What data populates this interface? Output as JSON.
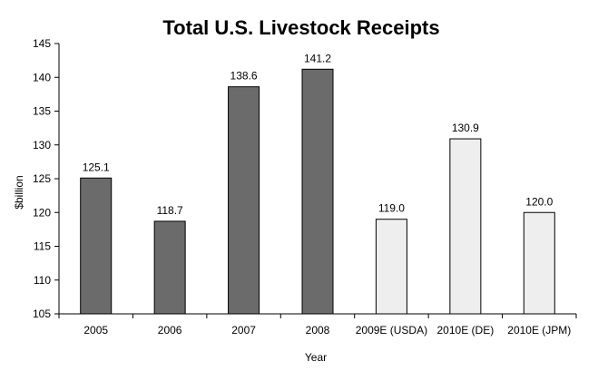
{
  "chart_data": {
    "type": "bar",
    "title": "Total U.S. Livestock Receipts",
    "xlabel": "Year",
    "ylabel": "$billion",
    "ylim": [
      105,
      145
    ],
    "yticks": [
      "105",
      "110",
      "115",
      "120",
      "125",
      "130",
      "135",
      "140",
      "145"
    ],
    "categories": [
      "2005",
      "2006",
      "2007",
      "2008",
      "2009E (USDA)",
      "2010E (DE)",
      "2010E (JPM)"
    ],
    "values": [
      125.1,
      118.7,
      138.6,
      141.2,
      119.0,
      130.9,
      120.0
    ],
    "value_labels": [
      "125.1",
      "118.7",
      "138.6",
      "141.2",
      "119.0",
      "130.9",
      "120.0"
    ],
    "bar_kinds": [
      "actual",
      "actual",
      "actual",
      "actual",
      "estimate",
      "estimate",
      "estimate"
    ],
    "colors": {
      "actual": "#6b6b6b",
      "estimate": "#eeeeee",
      "bar_stroke": "#000000",
      "axis": "#000000"
    },
    "grid": false,
    "legend": "none"
  }
}
